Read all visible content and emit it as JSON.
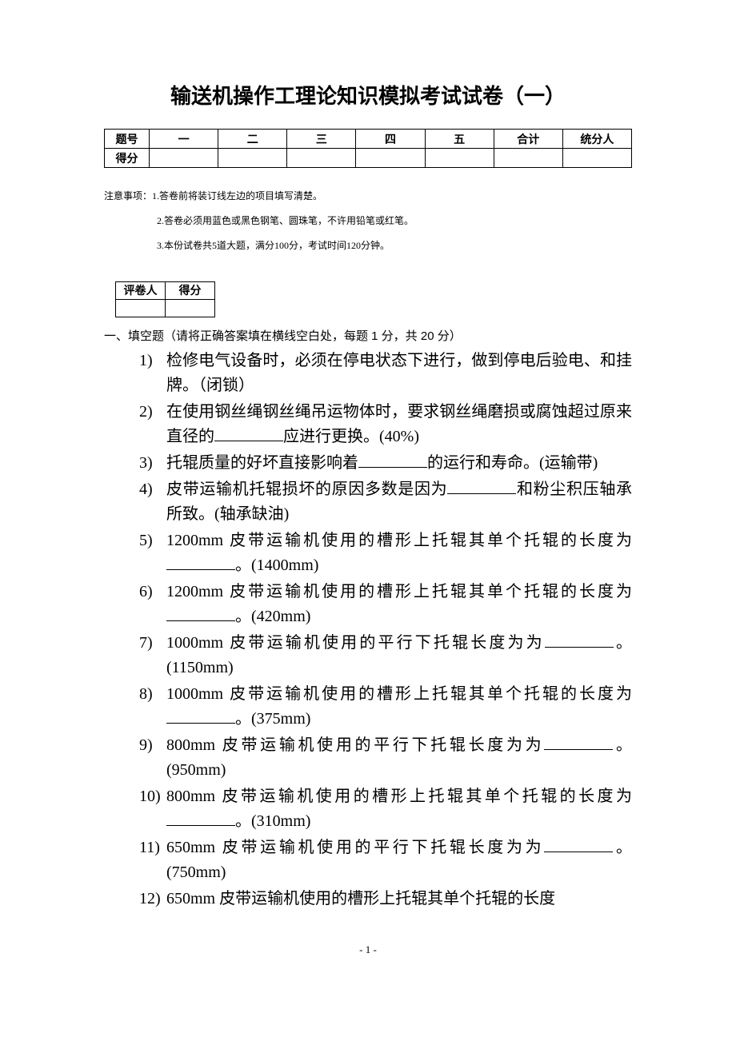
{
  "title": "输送机操作工理论知识模拟考试试卷（一）",
  "score_table": {
    "header_label": "题号",
    "score_label": "得分",
    "columns": [
      "一",
      "二",
      "三",
      "四",
      "五",
      "合计",
      "统分人"
    ]
  },
  "notes": {
    "lead": "注意事项：",
    "items": [
      "1.答卷前将装订线左边的项目填写清楚。",
      "2.答卷必须用蓝色或黑色钢笔、圆珠笔，不许用铅笔或红笔。",
      "3.本份试卷共5道大题，满分100分，考试时间120分钟。"
    ]
  },
  "grading_box": {
    "grader": "评卷人",
    "score": "得分"
  },
  "section1": {
    "heading": "一、填空题（请将正确答案填在横线空白处，每题 1 分，共 20 分）",
    "questions": [
      {
        "n": "1)",
        "pre": "检修电气设备时，必须在停电状态下进行，做到停电后验电、",
        "blank": false,
        "post": "和挂牌。（闭锁）"
      },
      {
        "n": "2)",
        "pre": "在使用钢丝绳钢丝绳吊运物体时，要求钢丝绳磨损或腐蚀超过原来直径的",
        "blank": true,
        "post": "应进行更换。(40%)"
      },
      {
        "n": "3)",
        "pre": "托辊质量的好坏直接影响着",
        "blank": true,
        "post": "的运行和寿命。(运输带)"
      },
      {
        "n": "4)",
        "pre": "皮带运输机托辊损坏的原因多数是因为",
        "blank": true,
        "post": "和粉尘积压轴承所致。(轴承缺油)"
      },
      {
        "n": "5)",
        "pre": "1200mm 皮带运输机使用的槽形上托辊其单个托辊的长度为",
        "blank": true,
        "post": "。(1400mm)"
      },
      {
        "n": "6)",
        "pre": "1200mm 皮带运输机使用的槽形上托辊其单个托辊的长度为",
        "blank": true,
        "post": "。(420mm)"
      },
      {
        "n": "7)",
        "pre": "1000mm 皮带运输机使用的平行下托辊长度为为",
        "blank": true,
        "post": "。(1150mm)"
      },
      {
        "n": "8)",
        "pre": "1000mm 皮带运输机使用的槽形上托辊其单个托辊的长度为",
        "blank": true,
        "post": "。(375mm)"
      },
      {
        "n": "9)",
        "pre": "800mm 皮带运输机使用的平行下托辊长度为为",
        "blank": true,
        "post": "。(950mm)"
      },
      {
        "n": "10)",
        "pre": "800mm 皮带运输机使用的槽形上托辊其单个托辊的长度为",
        "blank": true,
        "post": "。(310mm)"
      },
      {
        "n": "11)",
        "pre": "650mm 皮带运输机使用的平行下托辊长度为为",
        "blank": true,
        "post": "。(750mm)"
      },
      {
        "n": "12)",
        "pre": "650mm 皮带运输机使用的槽形上托辊其单个托辊的长度",
        "blank": false,
        "post": ""
      }
    ]
  },
  "page_number": "- 1 -"
}
